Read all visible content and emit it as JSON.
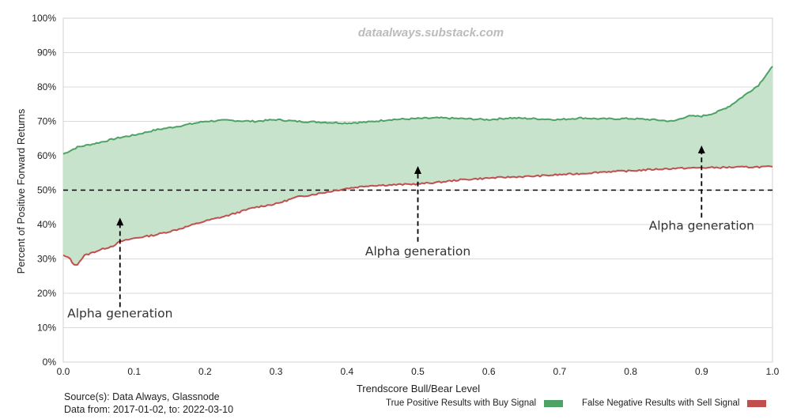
{
  "chart_data": {
    "type": "area",
    "title": "",
    "watermark": "dataalways.substack.com",
    "xlabel": "Trendscore Bull/Bear Level",
    "ylabel": "Percent of Positive Forward Returns",
    "xlim": [
      0,
      1
    ],
    "ylim": [
      0,
      100
    ],
    "x_ticks": [
      "0.0",
      "0.1",
      "0.2",
      "0.3",
      "0.4",
      "0.5",
      "0.6",
      "0.7",
      "0.8",
      "0.9",
      "1.0"
    ],
    "y_ticks": [
      "0%",
      "10%",
      "20%",
      "30%",
      "40%",
      "50%",
      "60%",
      "70%",
      "80%",
      "90%",
      "100%"
    ],
    "grid": "horizontal",
    "reference_line": {
      "y": 50,
      "style": "dashed"
    },
    "series": [
      {
        "name": "True Positive Results with Buy Signal",
        "color": "#4ea265",
        "x": [
          0.0,
          0.02,
          0.05,
          0.08,
          0.1,
          0.13,
          0.16,
          0.2,
          0.23,
          0.27,
          0.3,
          0.33,
          0.36,
          0.4,
          0.43,
          0.46,
          0.5,
          0.53,
          0.56,
          0.6,
          0.63,
          0.66,
          0.7,
          0.73,
          0.76,
          0.8,
          0.83,
          0.86,
          0.88,
          0.9,
          0.92,
          0.94,
          0.96,
          0.98,
          1.0
        ],
        "y": [
          60.5,
          62.5,
          63.8,
          65.3,
          66.0,
          67.5,
          68.5,
          70.0,
          70.3,
          70.0,
          70.5,
          70.0,
          69.8,
          69.5,
          69.8,
          70.5,
          70.8,
          71.0,
          70.8,
          70.5,
          71.0,
          70.8,
          70.5,
          71.0,
          70.7,
          70.8,
          70.5,
          70.0,
          71.5,
          71.5,
          72.5,
          74.5,
          77.5,
          80.5,
          86.0
        ]
      },
      {
        "name": "False Negative Results with Sell Signal",
        "color": "#c0504d",
        "x": [
          0.0,
          0.01,
          0.015,
          0.02,
          0.03,
          0.05,
          0.07,
          0.08,
          0.1,
          0.13,
          0.16,
          0.2,
          0.23,
          0.27,
          0.3,
          0.33,
          0.36,
          0.4,
          0.43,
          0.46,
          0.5,
          0.53,
          0.56,
          0.6,
          0.63,
          0.66,
          0.7,
          0.73,
          0.76,
          0.8,
          0.83,
          0.86,
          0.9,
          0.93,
          0.96,
          1.0
        ],
        "y": [
          31.0,
          30.0,
          28.2,
          28.5,
          31.0,
          32.5,
          33.8,
          35.0,
          36.0,
          37.0,
          38.5,
          41.0,
          42.5,
          45.0,
          46.0,
          48.0,
          49.0,
          50.5,
          51.3,
          51.5,
          51.8,
          52.3,
          53.0,
          53.5,
          53.8,
          54.0,
          54.5,
          54.8,
          55.3,
          55.6,
          56.0,
          56.3,
          56.5,
          56.6,
          56.7,
          56.8
        ]
      }
    ],
    "annotations": [
      {
        "text": "Alpha generation",
        "x": 0.08,
        "arrow_from": 16,
        "arrow_to": 42,
        "label_y": 13
      },
      {
        "text": "Alpha generation",
        "x": 0.5,
        "arrow_from": 35,
        "arrow_to": 57,
        "label_y": 31
      },
      {
        "text": "Alpha generation",
        "x": 0.9,
        "arrow_from": 42,
        "arrow_to": 63,
        "label_y": 38.5
      }
    ]
  },
  "footer": {
    "source": "Source(s): Data Always, Glassnode",
    "date_range": "Data from: 2017-01-02, to: 2022-03-10"
  },
  "legend": {
    "buy_label": "True Positive Results with Buy Signal",
    "buy_color": "#4ea265",
    "sell_label": "False Negative Results with Sell Signal",
    "sell_color": "#c0504d"
  }
}
